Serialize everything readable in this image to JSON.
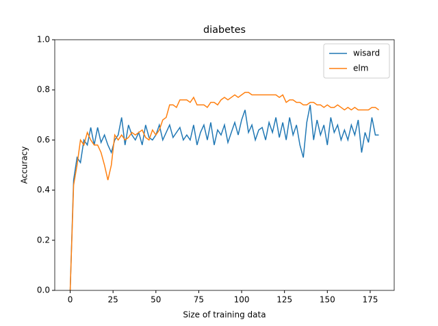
{
  "chart_data": {
    "type": "line",
    "title": "diabetes",
    "x_label": "Size of training data",
    "y_label": "Accuracy",
    "x": [
      0,
      2,
      4,
      6,
      8,
      10,
      12,
      14,
      16,
      18,
      20,
      22,
      24,
      26,
      28,
      30,
      32,
      34,
      36,
      38,
      40,
      42,
      44,
      46,
      48,
      50,
      52,
      54,
      56,
      58,
      60,
      62,
      64,
      66,
      68,
      70,
      72,
      74,
      76,
      78,
      80,
      82,
      84,
      86,
      88,
      90,
      92,
      94,
      96,
      98,
      100,
      102,
      104,
      106,
      108,
      110,
      112,
      114,
      116,
      118,
      120,
      122,
      124,
      126,
      128,
      130,
      132,
      134,
      136,
      138,
      140,
      142,
      144,
      146,
      148,
      150,
      152,
      154,
      156,
      158,
      160,
      162,
      164,
      166,
      168,
      170,
      172,
      174,
      176,
      178,
      180
    ],
    "series": [
      {
        "name": "wisard",
        "color": "#1f77b4",
        "values": [
          0,
          0.44,
          0.53,
          0.51,
          0.6,
          0.58,
          0.65,
          0.58,
          0.65,
          0.59,
          0.62,
          0.58,
          0.55,
          0.6,
          0.62,
          0.69,
          0.58,
          0.66,
          0.62,
          0.6,
          0.63,
          0.58,
          0.66,
          0.61,
          0.6,
          0.62,
          0.66,
          0.6,
          0.63,
          0.66,
          0.61,
          0.63,
          0.65,
          0.6,
          0.62,
          0.6,
          0.66,
          0.58,
          0.63,
          0.66,
          0.6,
          0.67,
          0.58,
          0.64,
          0.62,
          0.66,
          0.59,
          0.63,
          0.67,
          0.62,
          0.68,
          0.72,
          0.63,
          0.66,
          0.6,
          0.64,
          0.65,
          0.6,
          0.67,
          0.63,
          0.69,
          0.61,
          0.67,
          0.6,
          0.69,
          0.62,
          0.66,
          0.58,
          0.53,
          0.67,
          0.74,
          0.6,
          0.68,
          0.62,
          0.66,
          0.58,
          0.69,
          0.63,
          0.66,
          0.6,
          0.64,
          0.6,
          0.66,
          0.62,
          0.68,
          0.55,
          0.63,
          0.59,
          0.69,
          0.62,
          0.62
        ]
      },
      {
        "name": "elm",
        "color": "#ff7f0e",
        "values": [
          0,
          0.42,
          0.5,
          0.6,
          0.58,
          0.63,
          0.6,
          0.58,
          0.58,
          0.55,
          0.5,
          0.44,
          0.5,
          0.62,
          0.6,
          0.62,
          0.6,
          0.61,
          0.63,
          0.62,
          0.63,
          0.64,
          0.61,
          0.6,
          0.64,
          0.62,
          0.64,
          0.68,
          0.69,
          0.74,
          0.74,
          0.73,
          0.76,
          0.76,
          0.76,
          0.75,
          0.77,
          0.74,
          0.74,
          0.74,
          0.73,
          0.75,
          0.75,
          0.74,
          0.76,
          0.77,
          0.76,
          0.77,
          0.78,
          0.77,
          0.78,
          0.79,
          0.79,
          0.78,
          0.78,
          0.78,
          0.78,
          0.78,
          0.78,
          0.78,
          0.78,
          0.77,
          0.78,
          0.75,
          0.76,
          0.76,
          0.75,
          0.75,
          0.74,
          0.74,
          0.75,
          0.75,
          0.74,
          0.74,
          0.73,
          0.74,
          0.73,
          0.73,
          0.74,
          0.73,
          0.72,
          0.73,
          0.72,
          0.73,
          0.72,
          0.72,
          0.72,
          0.72,
          0.73,
          0.73,
          0.72
        ]
      }
    ],
    "xlim": [
      -9,
      189
    ],
    "ylim": [
      0,
      1
    ],
    "xticks": [
      0,
      25,
      50,
      75,
      100,
      125,
      150,
      175
    ],
    "yticks": [
      {
        "value": 0,
        "label": "0.0"
      },
      0.2,
      0.4,
      0.6,
      0.8,
      {
        "value": 1,
        "label": "1.0"
      }
    ],
    "legend": "upper right"
  }
}
